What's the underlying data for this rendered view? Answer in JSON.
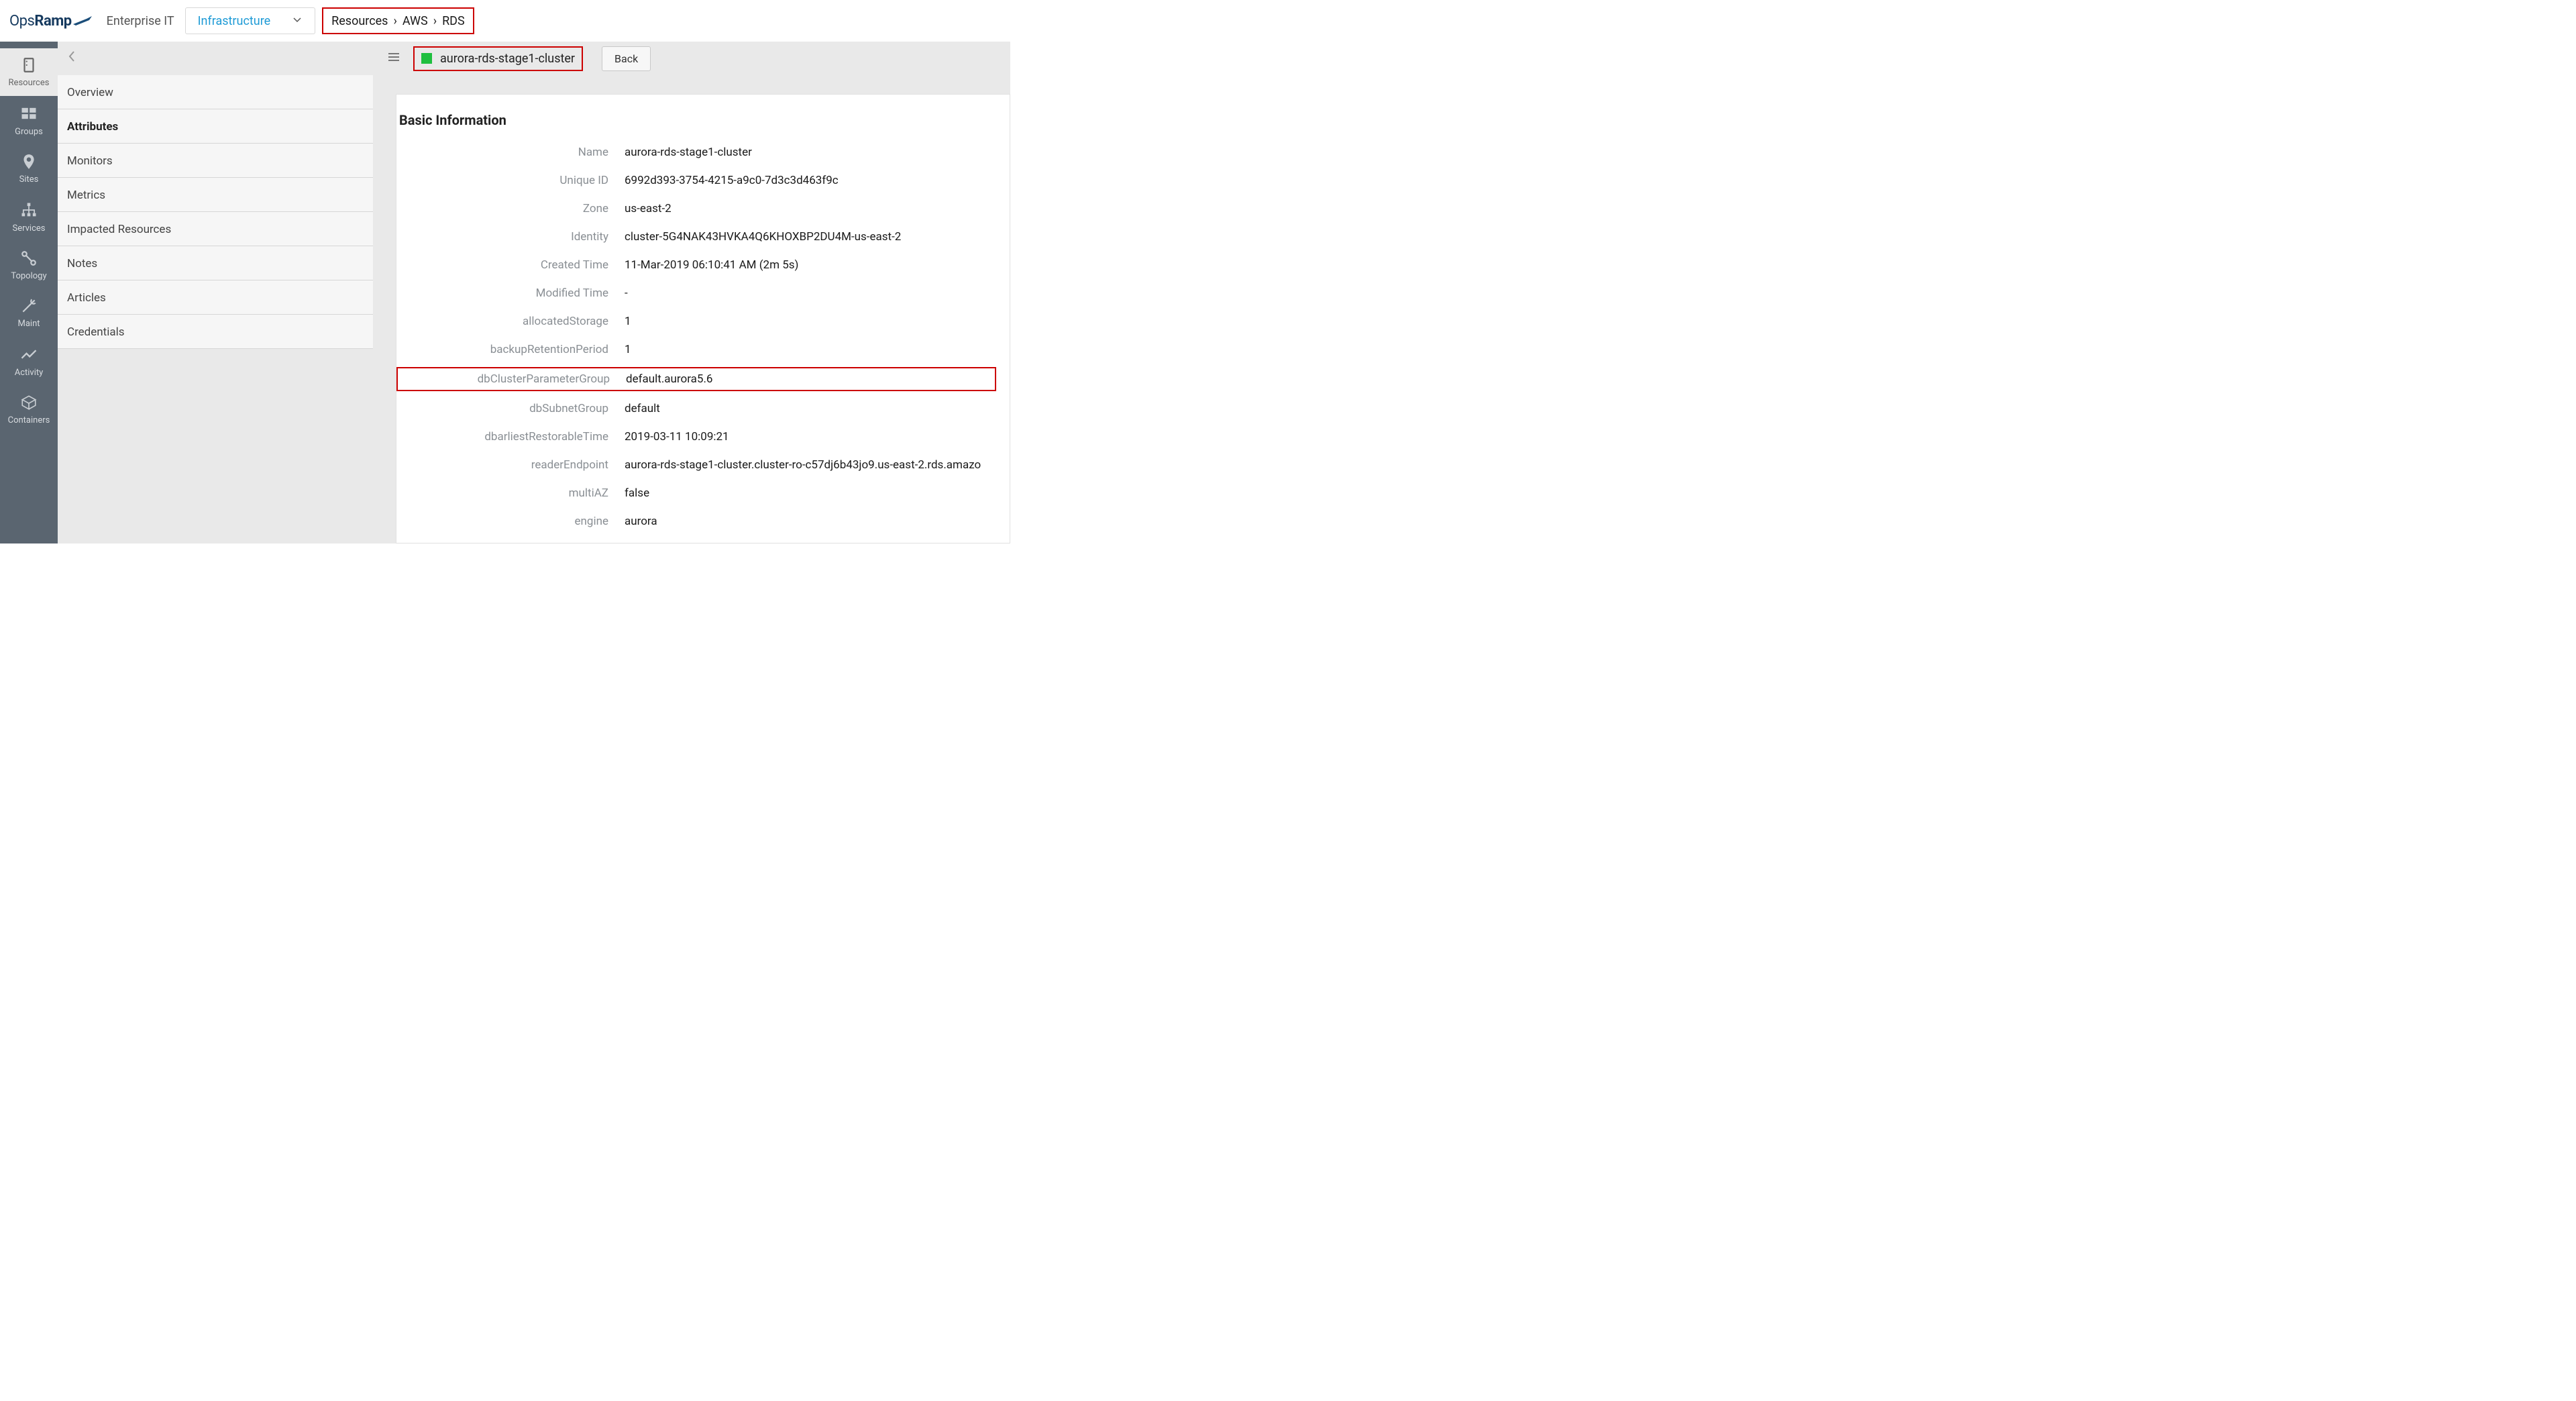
{
  "header": {
    "brand_ops": "Ops",
    "brand_ramp": "Ramp",
    "tenant": "Enterprise IT",
    "dropdown_label": "Infrastructure",
    "breadcrumb": [
      "Resources",
      "AWS",
      "RDS"
    ]
  },
  "rail": [
    {
      "key": "resources",
      "label": "Resources",
      "active": true
    },
    {
      "key": "groups",
      "label": "Groups"
    },
    {
      "key": "sites",
      "label": "Sites"
    },
    {
      "key": "services",
      "label": "Services"
    },
    {
      "key": "topology",
      "label": "Topology"
    },
    {
      "key": "maint",
      "label": "Maint"
    },
    {
      "key": "activity",
      "label": "Activity"
    },
    {
      "key": "containers",
      "label": "Containers"
    }
  ],
  "tabs": [
    "Overview",
    "Attributes",
    "Monitors",
    "Metrics",
    "Impacted Resources",
    "Notes",
    "Articles",
    "Credentials"
  ],
  "tabs_selected": "Attributes",
  "detail": {
    "status_color": "#1fbf3f",
    "title": "aurora-rds-stage1-cluster",
    "back_label": "Back",
    "section_title": "Basic Information",
    "rows": [
      {
        "label": "Name",
        "value": "aurora-rds-stage1-cluster"
      },
      {
        "label": "Unique ID",
        "value": "6992d393-3754-4215-a9c0-7d3c3d463f9c"
      },
      {
        "label": "Zone",
        "value": "us-east-2"
      },
      {
        "label": "Identity",
        "value": "cluster-5G4NAK43HVKA4Q6KHOXBP2DU4M-us-east-2"
      },
      {
        "label": "Created Time",
        "value": "11-Mar-2019 06:10:41 AM (2m 5s)"
      },
      {
        "label": "Modified Time",
        "value": "-"
      },
      {
        "label": "allocatedStorage",
        "value": "1"
      },
      {
        "label": "backupRetentionPeriod",
        "value": "1"
      },
      {
        "label": "dbClusterParameterGroup",
        "value": "default.aurora5.6",
        "boxed": true
      },
      {
        "label": "dbSubnetGroup",
        "value": "default"
      },
      {
        "label": "dbarliestRestorableTime",
        "value": "2019-03-11 10:09:21"
      },
      {
        "label": "readerEndpoint",
        "value": "aurora-rds-stage1-cluster.cluster-ro-c57dj6b43jo9.us-east-2.rds.amazo"
      },
      {
        "label": "multiAZ",
        "value": "false"
      },
      {
        "label": "engine",
        "value": "aurora"
      }
    ]
  },
  "colors": {
    "highlight_border": "#cc0000",
    "rail_bg": "#5a6570",
    "link": "#1f9bd6"
  }
}
